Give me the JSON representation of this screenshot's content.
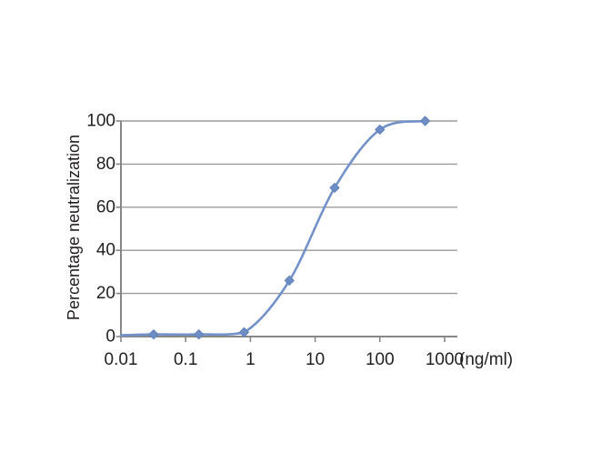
{
  "chart_data": {
    "type": "line",
    "title": "",
    "ylabel": "Percentage neutralization",
    "xlabel": "",
    "x_unit_label": "(ng/ml)",
    "x_scale": "log",
    "xlim": [
      0.01,
      1000
    ],
    "ylim": [
      0,
      100
    ],
    "x_ticks": [
      0.01,
      0.1,
      1,
      10,
      100,
      1000
    ],
    "x_tick_labels": [
      "0.01",
      "0.1",
      "1",
      "10",
      "100",
      "1000"
    ],
    "y_ticks": [
      0,
      20,
      40,
      60,
      80,
      100
    ],
    "y_tick_labels": [
      "0",
      "20",
      "40",
      "60",
      "80",
      "100"
    ],
    "grid": "horizontal-only",
    "legend": "none",
    "smooth": true,
    "series": [
      {
        "name": "Percentage neutralization",
        "x": [
          0.032,
          0.16,
          0.8,
          4,
          20,
          100,
          500
        ],
        "y": [
          1,
          1,
          2,
          26,
          69,
          96,
          100
        ],
        "marker": "diamond",
        "line_color": "#7291c9",
        "marker_fill": "#6e8dc5",
        "marker_stroke": "#5f82bc"
      }
    ],
    "curve_lead_in": {
      "x": 0.01,
      "y": 0.6
    },
    "axis_color": "#878787",
    "grid_color": "#9b9b9b",
    "text_color": "#231f20"
  }
}
